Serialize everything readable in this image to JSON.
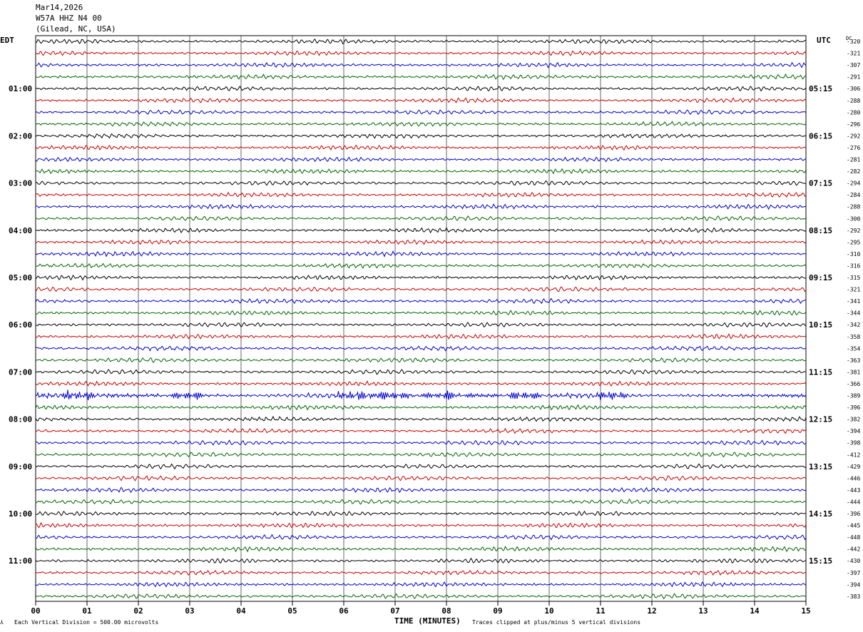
{
  "header": {
    "date": "Mar14,2026",
    "station": "W57A HHZ N4 00",
    "location": "(Gilead, NC, USA)"
  },
  "left_timezone": "EDT",
  "right_timezone": "UTC",
  "dc_label": "DC",
  "footer": {
    "scale_note": "Each Vertical Division =  500.00 microvolts",
    "clip_note": "Traces clipped at plus/minus 5 vertical divisions"
  },
  "colors": {
    "trace_cycle": [
      "#000000",
      "#cc0000",
      "#0000cc",
      "#006600"
    ],
    "grid": "#000000"
  },
  "chart_data": {
    "type": "line",
    "title": "",
    "xlabel": "TIME (MINUTES)",
    "ylabel": "",
    "xlim": [
      0,
      15
    ],
    "x_ticks": [
      "00",
      "01",
      "02",
      "03",
      "04",
      "05",
      "06",
      "07",
      "08",
      "09",
      "10",
      "11",
      "12",
      "13",
      "14",
      "15"
    ],
    "rows_count": 48,
    "left_hour_labels": [
      "01:00",
      "02:00",
      "03:00",
      "04:00",
      "05:00",
      "06:00",
      "07:00",
      "08:00",
      "09:00",
      "10:00",
      "11:00"
    ],
    "right_hour_labels": [
      "05:15",
      "06:15",
      "07:15",
      "08:15",
      "09:15",
      "10:15",
      "11:15",
      "12:15",
      "13:15",
      "14:15",
      "15:15"
    ],
    "dc_offsets": [
      "-320",
      "-321",
      "-307",
      "-291",
      "-306",
      "-288",
      "-280",
      "-296",
      "-292",
      "-276",
      "-281",
      "-282",
      "-294",
      "-284",
      "-288",
      "-300",
      "-292",
      "-295",
      "-310",
      "-316",
      "-315",
      "-321",
      "-341",
      "-344",
      "-342",
      "-358",
      "-354",
      "-363",
      "-381",
      "-366",
      "-389",
      "-396",
      "-382",
      "-394",
      "-398",
      "-412",
      "-429",
      "-446",
      "-443",
      "-444",
      "-396",
      "-445",
      "-448",
      "-442",
      "-430",
      "-397",
      "-394",
      "-383"
    ],
    "event_row": 30,
    "event_minutes": [
      0.8,
      3.0,
      6.2,
      6.9,
      8.0,
      9.5,
      11.2
    ]
  }
}
